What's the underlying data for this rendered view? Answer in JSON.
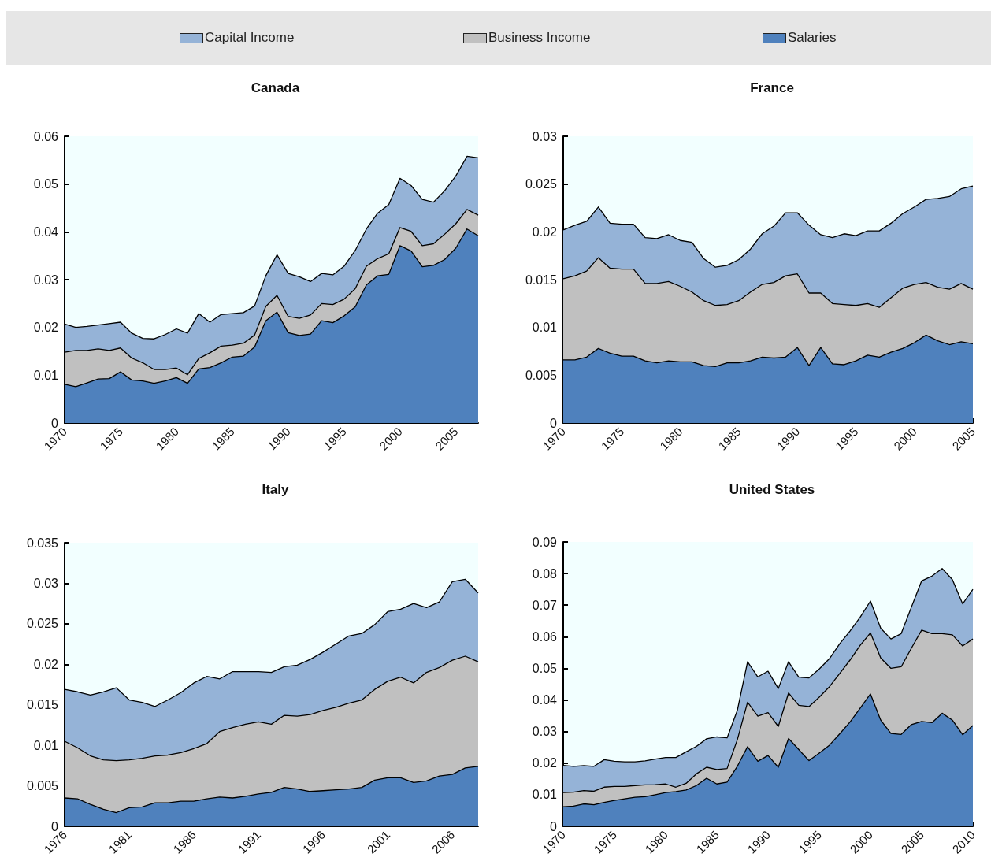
{
  "chart_data": [
    {
      "type": "area",
      "title": "Canada",
      "stacked": true,
      "legend": "top",
      "grid": false,
      "x": [
        1970,
        1971,
        1972,
        1973,
        1974,
        1975,
        1976,
        1977,
        1978,
        1979,
        1980,
        1981,
        1982,
        1983,
        1984,
        1985,
        1986,
        1987,
        1988,
        1989,
        1990,
        1991,
        1992,
        1993,
        1994,
        1995,
        1996,
        1997,
        1998,
        1999,
        2000,
        2001,
        2002,
        2003,
        2004,
        2005,
        2006,
        2007
      ],
      "xlim": [
        1970,
        2007
      ],
      "xticks": [
        1970,
        1975,
        1980,
        1985,
        1990,
        1995,
        2000,
        2005
      ],
      "ylim": [
        0,
        0.06
      ],
      "yticks": [
        0,
        0.01,
        0.02,
        0.03,
        0.04,
        0.05,
        0.06
      ],
      "series": [
        {
          "name": "Salaries",
          "color": "#4f81bd",
          "values": [
            0.0081,
            0.0076,
            0.0084,
            0.0092,
            0.0093,
            0.0107,
            0.009,
            0.0088,
            0.0083,
            0.0088,
            0.0095,
            0.0083,
            0.0113,
            0.0116,
            0.0126,
            0.0138,
            0.014,
            0.0159,
            0.0214,
            0.0232,
            0.0189,
            0.0183,
            0.0186,
            0.0214,
            0.021,
            0.0224,
            0.0243,
            0.0289,
            0.0308,
            0.0311,
            0.0371,
            0.036,
            0.0327,
            0.033,
            0.0342,
            0.0366,
            0.0406,
            0.0392
          ]
        },
        {
          "name": "Business Income",
          "color": "#c0c0c0",
          "values": [
            0.0067,
            0.0076,
            0.0068,
            0.0063,
            0.0059,
            0.005,
            0.0046,
            0.0038,
            0.0029,
            0.0024,
            0.002,
            0.0018,
            0.0022,
            0.0031,
            0.0035,
            0.0025,
            0.0027,
            0.0025,
            0.003,
            0.0035,
            0.0034,
            0.0036,
            0.004,
            0.0036,
            0.0038,
            0.0035,
            0.0038,
            0.0039,
            0.0036,
            0.0043,
            0.0038,
            0.0041,
            0.0044,
            0.0045,
            0.0053,
            0.0051,
            0.0041,
            0.0043
          ]
        },
        {
          "name": "Capital Income",
          "color": "#95b3d7",
          "values": [
            0.0059,
            0.0048,
            0.005,
            0.005,
            0.0056,
            0.0054,
            0.0052,
            0.0051,
            0.0064,
            0.0073,
            0.0082,
            0.0087,
            0.0094,
            0.0064,
            0.0066,
            0.0066,
            0.0064,
            0.0061,
            0.0064,
            0.0085,
            0.009,
            0.0087,
            0.007,
            0.0063,
            0.0062,
            0.0069,
            0.008,
            0.0078,
            0.0095,
            0.0103,
            0.0103,
            0.0096,
            0.0097,
            0.0087,
            0.0091,
            0.01,
            0.0111,
            0.012
          ]
        }
      ]
    },
    {
      "type": "area",
      "title": "France",
      "stacked": true,
      "grid": false,
      "x": [
        1970,
        1971,
        1972,
        1973,
        1974,
        1975,
        1976,
        1977,
        1978,
        1979,
        1980,
        1981,
        1982,
        1983,
        1984,
        1985,
        1986,
        1987,
        1988,
        1989,
        1990,
        1991,
        1992,
        1993,
        1994,
        1995,
        1996,
        1997,
        1998,
        1999,
        2000,
        2001,
        2002,
        2003,
        2004,
        2005
      ],
      "xlim": [
        1970,
        2005
      ],
      "xticks": [
        1970,
        1975,
        1980,
        1985,
        1990,
        1995,
        2000,
        2005
      ],
      "ylim": [
        0,
        0.03
      ],
      "yticks": [
        0,
        0.005,
        0.01,
        0.015,
        0.02,
        0.025,
        0.03
      ],
      "series": [
        {
          "color": "#4f81bd",
          "values": [
            0.0066,
            0.0066,
            0.0069,
            0.0078,
            0.0073,
            0.007,
            0.007,
            0.0065,
            0.0063,
            0.0065,
            0.0064,
            0.0064,
            0.006,
            0.0059,
            0.0063,
            0.0063,
            0.0065,
            0.0069,
            0.0068,
            0.0069,
            0.0079,
            0.006,
            0.0079,
            0.0062,
            0.0061,
            0.0065,
            0.0071,
            0.0069,
            0.0074,
            0.0078,
            0.0084,
            0.0092,
            0.0086,
            0.0082,
            0.0085,
            0.0083
          ]
        },
        {
          "color": "#c0c0c0",
          "values": [
            0.0085,
            0.0088,
            0.009,
            0.0095,
            0.0089,
            0.0091,
            0.0091,
            0.0081,
            0.0083,
            0.0083,
            0.0079,
            0.0073,
            0.0068,
            0.0064,
            0.0061,
            0.0065,
            0.0072,
            0.0076,
            0.0079,
            0.0085,
            0.0077,
            0.0076,
            0.0057,
            0.0063,
            0.0063,
            0.0058,
            0.0054,
            0.0052,
            0.0057,
            0.0063,
            0.0061,
            0.0055,
            0.0056,
            0.0058,
            0.0061,
            0.0057
          ]
        },
        {
          "color": "#95b3d7",
          "values": [
            0.0051,
            0.0053,
            0.0052,
            0.0053,
            0.0047,
            0.0047,
            0.0047,
            0.0048,
            0.0047,
            0.0049,
            0.0048,
            0.0052,
            0.0044,
            0.004,
            0.0041,
            0.0043,
            0.0045,
            0.0053,
            0.0059,
            0.0066,
            0.0064,
            0.0071,
            0.0061,
            0.0069,
            0.0074,
            0.0073,
            0.0076,
            0.008,
            0.0078,
            0.0078,
            0.0081,
            0.0087,
            0.0093,
            0.0097,
            0.0099,
            0.0108
          ]
        }
      ]
    },
    {
      "type": "area",
      "title": "Italy",
      "stacked": true,
      "grid": false,
      "x": [
        1976,
        1977,
        1978,
        1979,
        1980,
        1981,
        1982,
        1983,
        1984,
        1985,
        1986,
        1987,
        1988,
        1989,
        1990,
        1991,
        1992,
        1993,
        1994,
        1995,
        1996,
        1997,
        1998,
        1999,
        2000,
        2001,
        2002,
        2003,
        2004,
        2005,
        2006,
        2007,
        2008
      ],
      "xlim": [
        1976,
        2008
      ],
      "xticks": [
        1976,
        1981,
        1986,
        1991,
        1996,
        2001,
        2006
      ],
      "ylim": [
        0,
        0.035
      ],
      "yticks": [
        0,
        0.005,
        0.01,
        0.015,
        0.02,
        0.025,
        0.03,
        0.035
      ],
      "series": [
        {
          "color": "#4f81bd",
          "values": [
            0.0035,
            0.0034,
            0.0027,
            0.0021,
            0.0017,
            0.0023,
            0.0024,
            0.0029,
            0.0029,
            0.0031,
            0.0031,
            0.0034,
            0.0036,
            0.0035,
            0.0037,
            0.004,
            0.0042,
            0.0048,
            0.0046,
            0.0043,
            0.0044,
            0.0045,
            0.0046,
            0.0048,
            0.0057,
            0.006,
            0.006,
            0.0054,
            0.0056,
            0.0062,
            0.0064,
            0.0072,
            0.0074
          ]
        },
        {
          "color": "#c0c0c0",
          "values": [
            0.007,
            0.0063,
            0.006,
            0.0061,
            0.0064,
            0.0059,
            0.006,
            0.0058,
            0.0059,
            0.006,
            0.0065,
            0.0068,
            0.0081,
            0.0087,
            0.0089,
            0.0089,
            0.0084,
            0.0089,
            0.009,
            0.0095,
            0.0099,
            0.0102,
            0.0106,
            0.0108,
            0.0112,
            0.0119,
            0.0124,
            0.0123,
            0.0134,
            0.0134,
            0.0141,
            0.0138,
            0.0129
          ]
        },
        {
          "color": "#95b3d7",
          "values": [
            0.0064,
            0.0069,
            0.0075,
            0.0084,
            0.009,
            0.0074,
            0.0069,
            0.0061,
            0.0068,
            0.0074,
            0.0081,
            0.0083,
            0.0065,
            0.0069,
            0.0065,
            0.0062,
            0.0064,
            0.006,
            0.0063,
            0.0068,
            0.0072,
            0.0078,
            0.0083,
            0.0082,
            0.008,
            0.0086,
            0.0084,
            0.0098,
            0.008,
            0.0081,
            0.0097,
            0.0095,
            0.0085
          ]
        }
      ]
    },
    {
      "type": "area",
      "title": "United States",
      "stacked": true,
      "grid": false,
      "x": [
        1970,
        1971,
        1972,
        1973,
        1974,
        1975,
        1976,
        1977,
        1978,
        1979,
        1980,
        1981,
        1982,
        1983,
        1984,
        1985,
        1986,
        1987,
        1988,
        1989,
        1990,
        1991,
        1992,
        1993,
        1994,
        1995,
        1996,
        1997,
        1998,
        1999,
        2000,
        2001,
        2002,
        2003,
        2004,
        2005,
        2006,
        2007,
        2008,
        2009,
        2010
      ],
      "xlim": [
        1970,
        2010
      ],
      "xticks": [
        1970,
        1975,
        1980,
        1985,
        1990,
        1995,
        2000,
        2005,
        2010
      ],
      "ylim": [
        0,
        0.09
      ],
      "yticks": [
        0,
        0.01,
        0.02,
        0.03,
        0.04,
        0.05,
        0.06,
        0.07,
        0.08,
        0.09
      ],
      "series": [
        {
          "color": "#4f81bd",
          "values": [
            0.0062,
            0.0064,
            0.0071,
            0.0068,
            0.0076,
            0.0082,
            0.0087,
            0.0092,
            0.0094,
            0.01,
            0.0107,
            0.011,
            0.0115,
            0.0129,
            0.0152,
            0.0134,
            0.014,
            0.019,
            0.0252,
            0.0206,
            0.0224,
            0.0187,
            0.0278,
            0.0243,
            0.0208,
            0.0232,
            0.0257,
            0.0293,
            0.033,
            0.0374,
            0.0419,
            0.0336,
            0.0294,
            0.0291,
            0.0322,
            0.0332,
            0.0328,
            0.0358,
            0.0336,
            0.029,
            0.0319
          ]
        },
        {
          "color": "#c0c0c0",
          "values": [
            0.0045,
            0.0044,
            0.0042,
            0.0043,
            0.0048,
            0.0044,
            0.0039,
            0.0037,
            0.0037,
            0.0032,
            0.0027,
            0.0014,
            0.0021,
            0.0037,
            0.0035,
            0.0046,
            0.0043,
            0.0084,
            0.0141,
            0.0143,
            0.0136,
            0.0129,
            0.0144,
            0.014,
            0.0171,
            0.0177,
            0.0185,
            0.0191,
            0.0196,
            0.0199,
            0.0193,
            0.0197,
            0.0206,
            0.0214,
            0.0242,
            0.0289,
            0.0282,
            0.0252,
            0.027,
            0.0281,
            0.0274
          ]
        },
        {
          "color": "#95b3d7",
          "values": [
            0.0086,
            0.0082,
            0.0079,
            0.0079,
            0.0087,
            0.008,
            0.0078,
            0.0075,
            0.0076,
            0.0081,
            0.0084,
            0.0094,
            0.01,
            0.0087,
            0.009,
            0.0103,
            0.0097,
            0.0093,
            0.0128,
            0.0124,
            0.0131,
            0.012,
            0.0099,
            0.0089,
            0.0091,
            0.0089,
            0.0089,
            0.0094,
            0.0092,
            0.0089,
            0.0101,
            0.0094,
            0.0093,
            0.0105,
            0.013,
            0.0156,
            0.0182,
            0.0206,
            0.0175,
            0.0133,
            0.0157
          ]
        }
      ]
    }
  ]
}
